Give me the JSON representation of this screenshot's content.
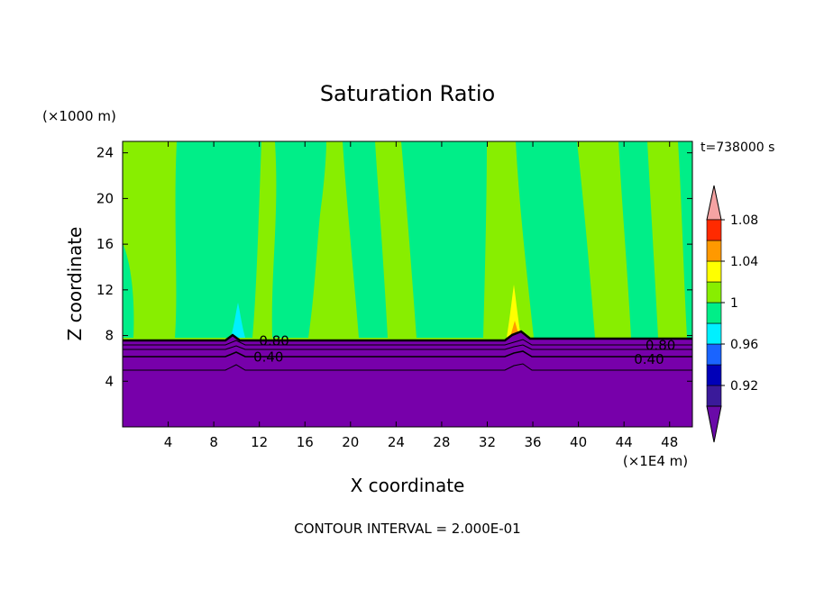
{
  "chart_data": {
    "type": "heatmap",
    "title": "Saturation Ratio",
    "xlabel": "X coordinate",
    "ylabel": "Z coordinate",
    "x_units": "(×1E4 m)",
    "y_units": "(×1000 m)",
    "time_label": "t=738000 s",
    "footer": "CONTOUR INTERVAL = 2.000E-01",
    "xlim": [
      0,
      50
    ],
    "ylim": [
      0,
      25
    ],
    "x_ticks": [
      "4",
      "8",
      "12",
      "16",
      "20",
      "24",
      "28",
      "32",
      "36",
      "40",
      "44",
      "48"
    ],
    "y_ticks": [
      "4",
      "8",
      "12",
      "16",
      "20",
      "24"
    ],
    "contour_labels": [
      {
        "text": "0.80",
        "x": 13.3,
        "z": 7.6
      },
      {
        "text": "0.40",
        "x": 12.8,
        "z": 6.2
      },
      {
        "text": "0.80",
        "x": 47.2,
        "z": 7.2
      },
      {
        "text": "0.40",
        "x": 46.2,
        "z": 6.0
      }
    ],
    "colorbar": {
      "levels": [
        "0.92",
        "0.96",
        "1",
        "1.04",
        "1.08"
      ],
      "min_arrow_color": "#6a0aa8",
      "max_arrow_color": "#f5a3a3",
      "bands": [
        {
          "color": "#3a1a9a"
        },
        {
          "color": "#0000b8"
        },
        {
          "color": "#1a64ff"
        },
        {
          "color": "#00f0ff"
        },
        {
          "color": "#00ee88"
        },
        {
          "color": "#88ee00"
        },
        {
          "color": "#ffff00"
        },
        {
          "color": "#ff9900"
        },
        {
          "color": "#ff2a00"
        }
      ]
    },
    "colors": {
      "dry": "#7700aa",
      "near_saturated": "#00ee88",
      "saturated": "#88ee00",
      "cyan": "#00f0ff",
      "yellow": "#ffff00",
      "orange": "#ff9900",
      "red": "#ff2a00"
    }
  }
}
